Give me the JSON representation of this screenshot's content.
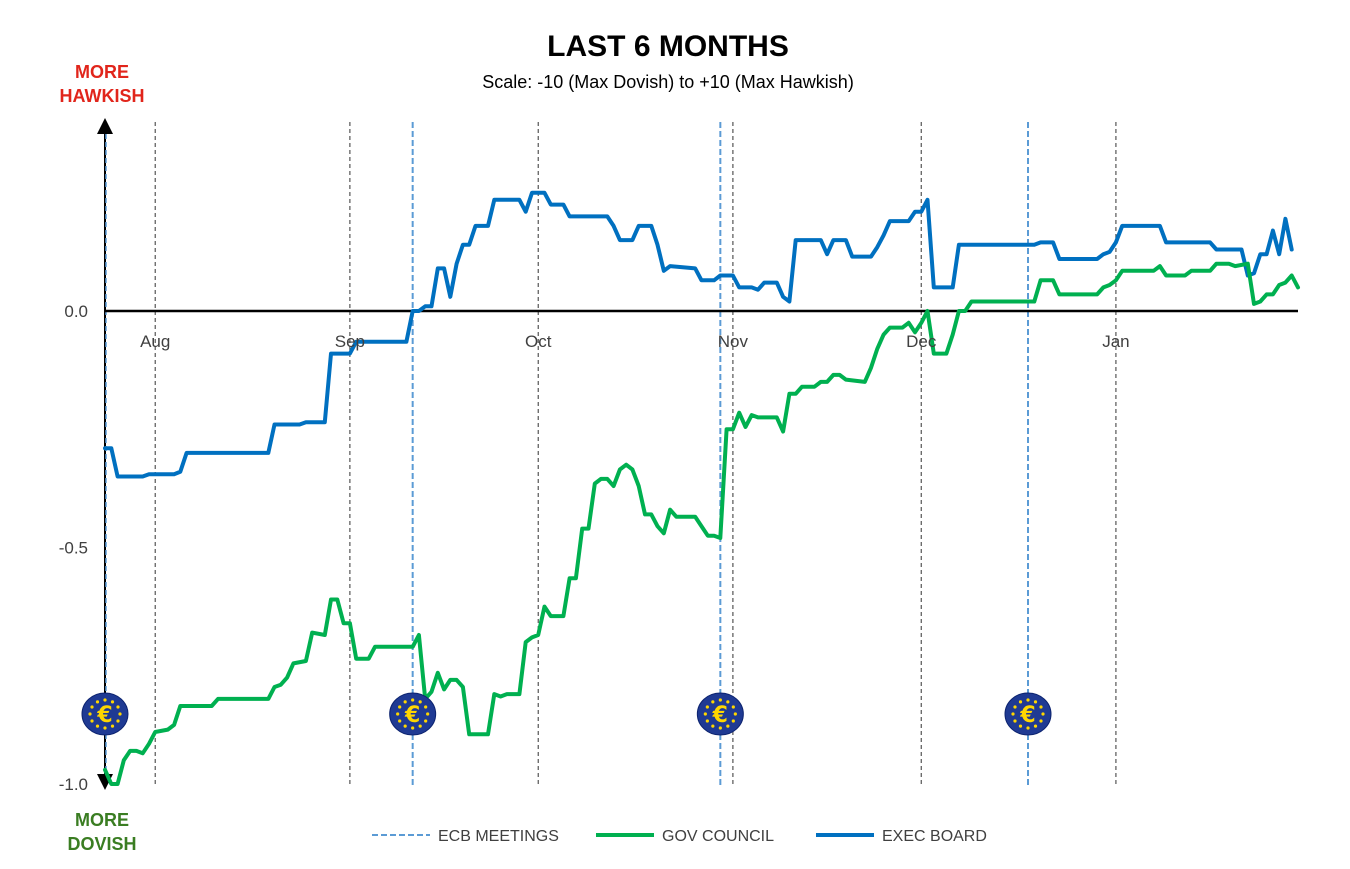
{
  "chart_data": {
    "type": "line",
    "title": "LAST 6 MONTHS",
    "subtitle": "Scale: -10 (Max Dovish)  to +10 (Max Hawkish)",
    "upper_label": [
      "MORE",
      "HAWKISH"
    ],
    "lower_label": [
      "MORE",
      "DOVISH"
    ],
    "xlabel": "",
    "ylabel": "",
    "ylim": [
      -1.0,
      0.4
    ],
    "xlim": [
      0,
      190
    ],
    "yticks": [
      0.0,
      -0.5,
      -1.0
    ],
    "ytick_labels": [
      "0.0",
      "-0.5",
      "-1.0"
    ],
    "months": [
      {
        "label": "Aug",
        "day": 8
      },
      {
        "label": "Sep",
        "day": 39
      },
      {
        "label": "Oct",
        "day": 69
      },
      {
        "label": "Nov",
        "day": 100
      },
      {
        "label": "Dec",
        "day": 130
      },
      {
        "label": "Jan",
        "day": 161
      }
    ],
    "ecb_meetings": [
      49,
      98,
      147
    ],
    "legend": [
      {
        "label": "ECB MEETINGS",
        "color": "#5b9bd5",
        "style": "dashed"
      },
      {
        "label": "GOV COUNCIL",
        "color": "#00b050",
        "style": "solid"
      },
      {
        "label": "EXEC BOARD",
        "color": "#0070c0",
        "style": "solid"
      }
    ],
    "series": [
      {
        "name": "EXEC BOARD",
        "color": "#0070c0",
        "points": [
          [
            0,
            -0.29
          ],
          [
            1,
            -0.29
          ],
          [
            2,
            -0.35
          ],
          [
            6,
            -0.35
          ],
          [
            7,
            -0.345
          ],
          [
            11,
            -0.345
          ],
          [
            12,
            -0.34
          ],
          [
            13,
            -0.3
          ],
          [
            26,
            -0.3
          ],
          [
            27,
            -0.24
          ],
          [
            31,
            -0.24
          ],
          [
            32,
            -0.235
          ],
          [
            35,
            -0.235
          ],
          [
            36,
            -0.09
          ],
          [
            39,
            -0.09
          ],
          [
            40,
            -0.065
          ],
          [
            48,
            -0.065
          ],
          [
            49,
            0.0
          ],
          [
            50,
            0.0
          ],
          [
            51,
            0.01
          ],
          [
            52,
            0.01
          ],
          [
            53,
            0.09
          ],
          [
            54,
            0.09
          ],
          [
            55,
            0.03
          ],
          [
            56,
            0.1
          ],
          [
            57,
            0.14
          ],
          [
            58,
            0.14
          ],
          [
            59,
            0.18
          ],
          [
            61,
            0.18
          ],
          [
            62,
            0.235
          ],
          [
            66,
            0.235
          ],
          [
            67,
            0.21
          ],
          [
            68,
            0.25
          ],
          [
            70,
            0.25
          ],
          [
            71,
            0.225
          ],
          [
            73,
            0.225
          ],
          [
            74,
            0.2
          ],
          [
            80,
            0.2
          ],
          [
            81,
            0.18
          ],
          [
            82,
            0.15
          ],
          [
            84,
            0.15
          ],
          [
            85,
            0.18
          ],
          [
            87,
            0.18
          ],
          [
            88,
            0.14
          ],
          [
            89,
            0.085
          ],
          [
            90,
            0.095
          ],
          [
            94,
            0.09
          ],
          [
            95,
            0.065
          ],
          [
            97,
            0.065
          ],
          [
            98,
            0.075
          ],
          [
            100,
            0.075
          ],
          [
            101,
            0.05
          ],
          [
            103,
            0.05
          ],
          [
            104,
            0.045
          ],
          [
            105,
            0.06
          ],
          [
            107,
            0.06
          ],
          [
            108,
            0.03
          ],
          [
            109,
            0.02
          ],
          [
            110,
            0.15
          ],
          [
            111,
            0.15
          ],
          [
            114,
            0.15
          ],
          [
            115,
            0.12
          ],
          [
            116,
            0.15
          ],
          [
            118,
            0.15
          ],
          [
            119,
            0.115
          ],
          [
            122,
            0.115
          ],
          [
            123,
            0.135
          ],
          [
            124,
            0.16
          ],
          [
            125,
            0.19
          ],
          [
            128,
            0.19
          ],
          [
            129,
            0.21
          ],
          [
            130,
            0.21
          ],
          [
            131,
            0.235
          ],
          [
            132,
            0.05
          ],
          [
            135,
            0.05
          ],
          [
            136,
            0.14
          ],
          [
            148,
            0.14
          ],
          [
            149,
            0.145
          ],
          [
            151,
            0.145
          ],
          [
            152,
            0.11
          ],
          [
            158,
            0.11
          ],
          [
            159,
            0.12
          ],
          [
            160,
            0.125
          ],
          [
            161,
            0.145
          ],
          [
            162,
            0.18
          ],
          [
            168,
            0.18
          ],
          [
            169,
            0.145
          ],
          [
            176,
            0.145
          ],
          [
            177,
            0.13
          ],
          [
            181,
            0.13
          ],
          [
            182,
            0.075
          ],
          [
            183,
            0.08
          ],
          [
            184,
            0.12
          ],
          [
            185,
            0.12
          ],
          [
            186,
            0.17
          ],
          [
            187,
            0.12
          ],
          [
            188,
            0.195
          ],
          [
            189,
            0.13
          ]
        ]
      },
      {
        "name": "GOV COUNCIL",
        "color": "#00b050",
        "points": [
          [
            0,
            -0.97
          ],
          [
            1,
            -1.0
          ],
          [
            2,
            -1.0
          ],
          [
            3,
            -0.95
          ],
          [
            4,
            -0.93
          ],
          [
            5,
            -0.93
          ],
          [
            6,
            -0.935
          ],
          [
            7,
            -0.915
          ],
          [
            8,
            -0.89
          ],
          [
            10,
            -0.885
          ],
          [
            11,
            -0.875
          ],
          [
            12,
            -0.835
          ],
          [
            17,
            -0.835
          ],
          [
            18,
            -0.82
          ],
          [
            26,
            -0.82
          ],
          [
            27,
            -0.795
          ],
          [
            28,
            -0.79
          ],
          [
            29,
            -0.775
          ],
          [
            30,
            -0.745
          ],
          [
            32,
            -0.74
          ],
          [
            33,
            -0.68
          ],
          [
            35,
            -0.685
          ],
          [
            36,
            -0.61
          ],
          [
            37,
            -0.61
          ],
          [
            38,
            -0.66
          ],
          [
            39,
            -0.66
          ],
          [
            40,
            -0.735
          ],
          [
            42,
            -0.735
          ],
          [
            43,
            -0.71
          ],
          [
            49,
            -0.71
          ],
          [
            50,
            -0.685
          ],
          [
            51,
            -0.82
          ],
          [
            52,
            -0.805
          ],
          [
            53,
            -0.765
          ],
          [
            54,
            -0.8
          ],
          [
            55,
            -0.78
          ],
          [
            56,
            -0.78
          ],
          [
            57,
            -0.795
          ],
          [
            58,
            -0.895
          ],
          [
            61,
            -0.895
          ],
          [
            62,
            -0.81
          ],
          [
            63,
            -0.815
          ],
          [
            64,
            -0.81
          ],
          [
            66,
            -0.81
          ],
          [
            67,
            -0.7
          ],
          [
            68,
            -0.69
          ],
          [
            69,
            -0.685
          ],
          [
            70,
            -0.625
          ],
          [
            71,
            -0.645
          ],
          [
            73,
            -0.645
          ],
          [
            74,
            -0.565
          ],
          [
            75,
            -0.565
          ],
          [
            76,
            -0.46
          ],
          [
            77,
            -0.46
          ],
          [
            78,
            -0.365
          ],
          [
            79,
            -0.355
          ],
          [
            80,
            -0.355
          ],
          [
            81,
            -0.37
          ],
          [
            82,
            -0.335
          ],
          [
            83,
            -0.325
          ],
          [
            84,
            -0.335
          ],
          [
            85,
            -0.37
          ],
          [
            86,
            -0.43
          ],
          [
            87,
            -0.43
          ],
          [
            88,
            -0.455
          ],
          [
            89,
            -0.47
          ],
          [
            90,
            -0.42
          ],
          [
            91,
            -0.435
          ],
          [
            94,
            -0.435
          ],
          [
            95,
            -0.455
          ],
          [
            96,
            -0.475
          ],
          [
            97,
            -0.475
          ],
          [
            98,
            -0.48
          ],
          [
            99,
            -0.25
          ],
          [
            100,
            -0.25
          ],
          [
            101,
            -0.215
          ],
          [
            102,
            -0.245
          ],
          [
            103,
            -0.22
          ],
          [
            104,
            -0.225
          ],
          [
            107,
            -0.225
          ],
          [
            108,
            -0.255
          ],
          [
            109,
            -0.175
          ],
          [
            110,
            -0.175
          ],
          [
            111,
            -0.16
          ],
          [
            113,
            -0.16
          ],
          [
            114,
            -0.15
          ],
          [
            115,
            -0.15
          ],
          [
            116,
            -0.135
          ],
          [
            117,
            -0.135
          ],
          [
            118,
            -0.145
          ],
          [
            121,
            -0.15
          ],
          [
            122,
            -0.12
          ],
          [
            123,
            -0.08
          ],
          [
            124,
            -0.05
          ],
          [
            125,
            -0.035
          ],
          [
            127,
            -0.035
          ],
          [
            128,
            -0.025
          ],
          [
            129,
            -0.045
          ],
          [
            130,
            -0.025
          ],
          [
            131,
            0.0
          ],
          [
            132,
            -0.09
          ],
          [
            134,
            -0.09
          ],
          [
            135,
            -0.05
          ],
          [
            136,
            0.0
          ],
          [
            137,
            0.0
          ],
          [
            138,
            0.02
          ],
          [
            148,
            0.02
          ],
          [
            149,
            0.065
          ],
          [
            151,
            0.065
          ],
          [
            152,
            0.035
          ],
          [
            158,
            0.035
          ],
          [
            159,
            0.05
          ],
          [
            160,
            0.055
          ],
          [
            161,
            0.065
          ],
          [
            162,
            0.085
          ],
          [
            167,
            0.085
          ],
          [
            168,
            0.095
          ],
          [
            169,
            0.075
          ],
          [
            172,
            0.075
          ],
          [
            173,
            0.085
          ],
          [
            176,
            0.085
          ],
          [
            177,
            0.1
          ],
          [
            179,
            0.1
          ],
          [
            180,
            0.095
          ],
          [
            182,
            0.1
          ],
          [
            183,
            0.015
          ],
          [
            184,
            0.02
          ],
          [
            185,
            0.035
          ],
          [
            186,
            0.035
          ],
          [
            187,
            0.055
          ],
          [
            188,
            0.06
          ],
          [
            189,
            0.075
          ],
          [
            190,
            0.05
          ]
        ]
      }
    ]
  }
}
